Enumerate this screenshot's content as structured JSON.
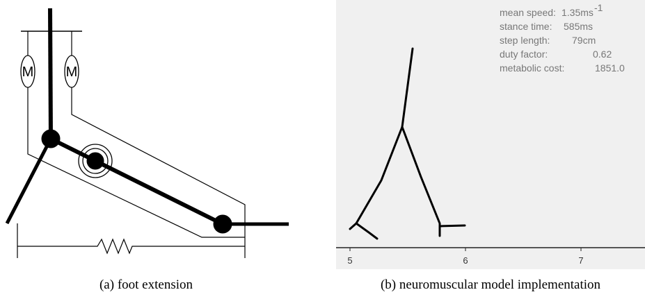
{
  "panels": [
    {
      "caption": "(a) foot extension",
      "motor_labels": [
        "M",
        "M"
      ]
    },
    {
      "caption": "(b) neuromuscular model implementation",
      "stats": [
        {
          "label": "mean speed:",
          "value": "1.35ms",
          "sup": "-1"
        },
        {
          "label": "stance time:",
          "value": "585ms"
        },
        {
          "label": "step length:",
          "value": "79cm"
        },
        {
          "label": "duty factor:",
          "value": "0.62"
        },
        {
          "label": "metabolic cost:",
          "value": "1851.0"
        }
      ],
      "xticks": [
        5,
        6,
        7
      ]
    }
  ]
}
